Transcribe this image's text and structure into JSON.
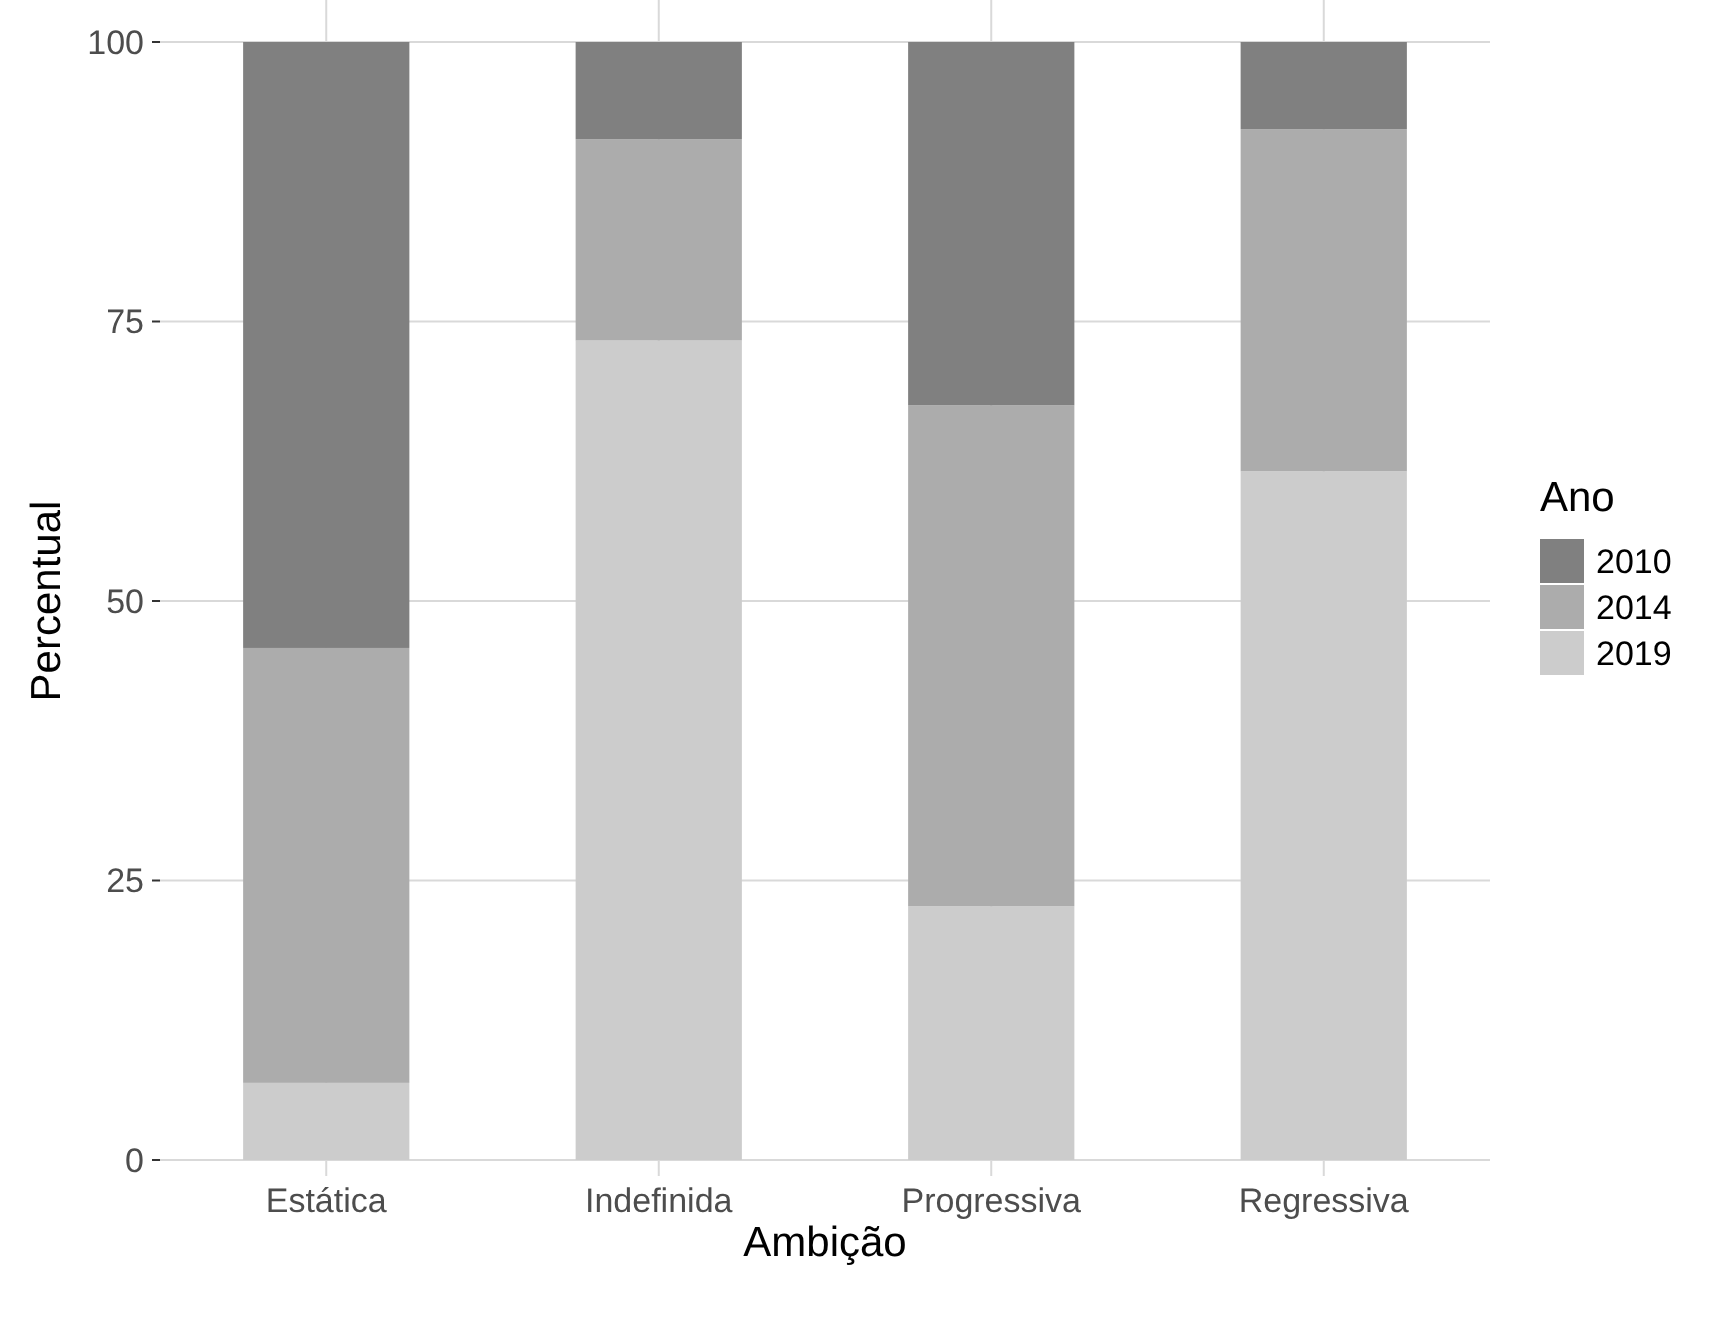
{
  "chart_data": {
    "type": "bar",
    "xlabel": "Ambição",
    "ylabel": "Percentual",
    "legend_title": "Ano",
    "categories": [
      "Estática",
      "Indefinida",
      "Progressiva",
      "Regressiva"
    ],
    "stacked": true,
    "series": [
      {
        "name": "2019",
        "color": "#cccccc",
        "values": [
          6.9,
          73.3,
          22.7,
          61.6
        ]
      },
      {
        "name": "2014",
        "color": "#acacac",
        "values": [
          38.9,
          18.0,
          44.8,
          30.6
        ]
      },
      {
        "name": "2010",
        "color": "#808080",
        "values": [
          54.2,
          8.7,
          32.5,
          7.8
        ]
      }
    ],
    "ylim": [
      0,
      100
    ],
    "yticks": [
      0,
      25,
      50,
      75,
      100
    ],
    "grid": true,
    "legend": "right"
  }
}
